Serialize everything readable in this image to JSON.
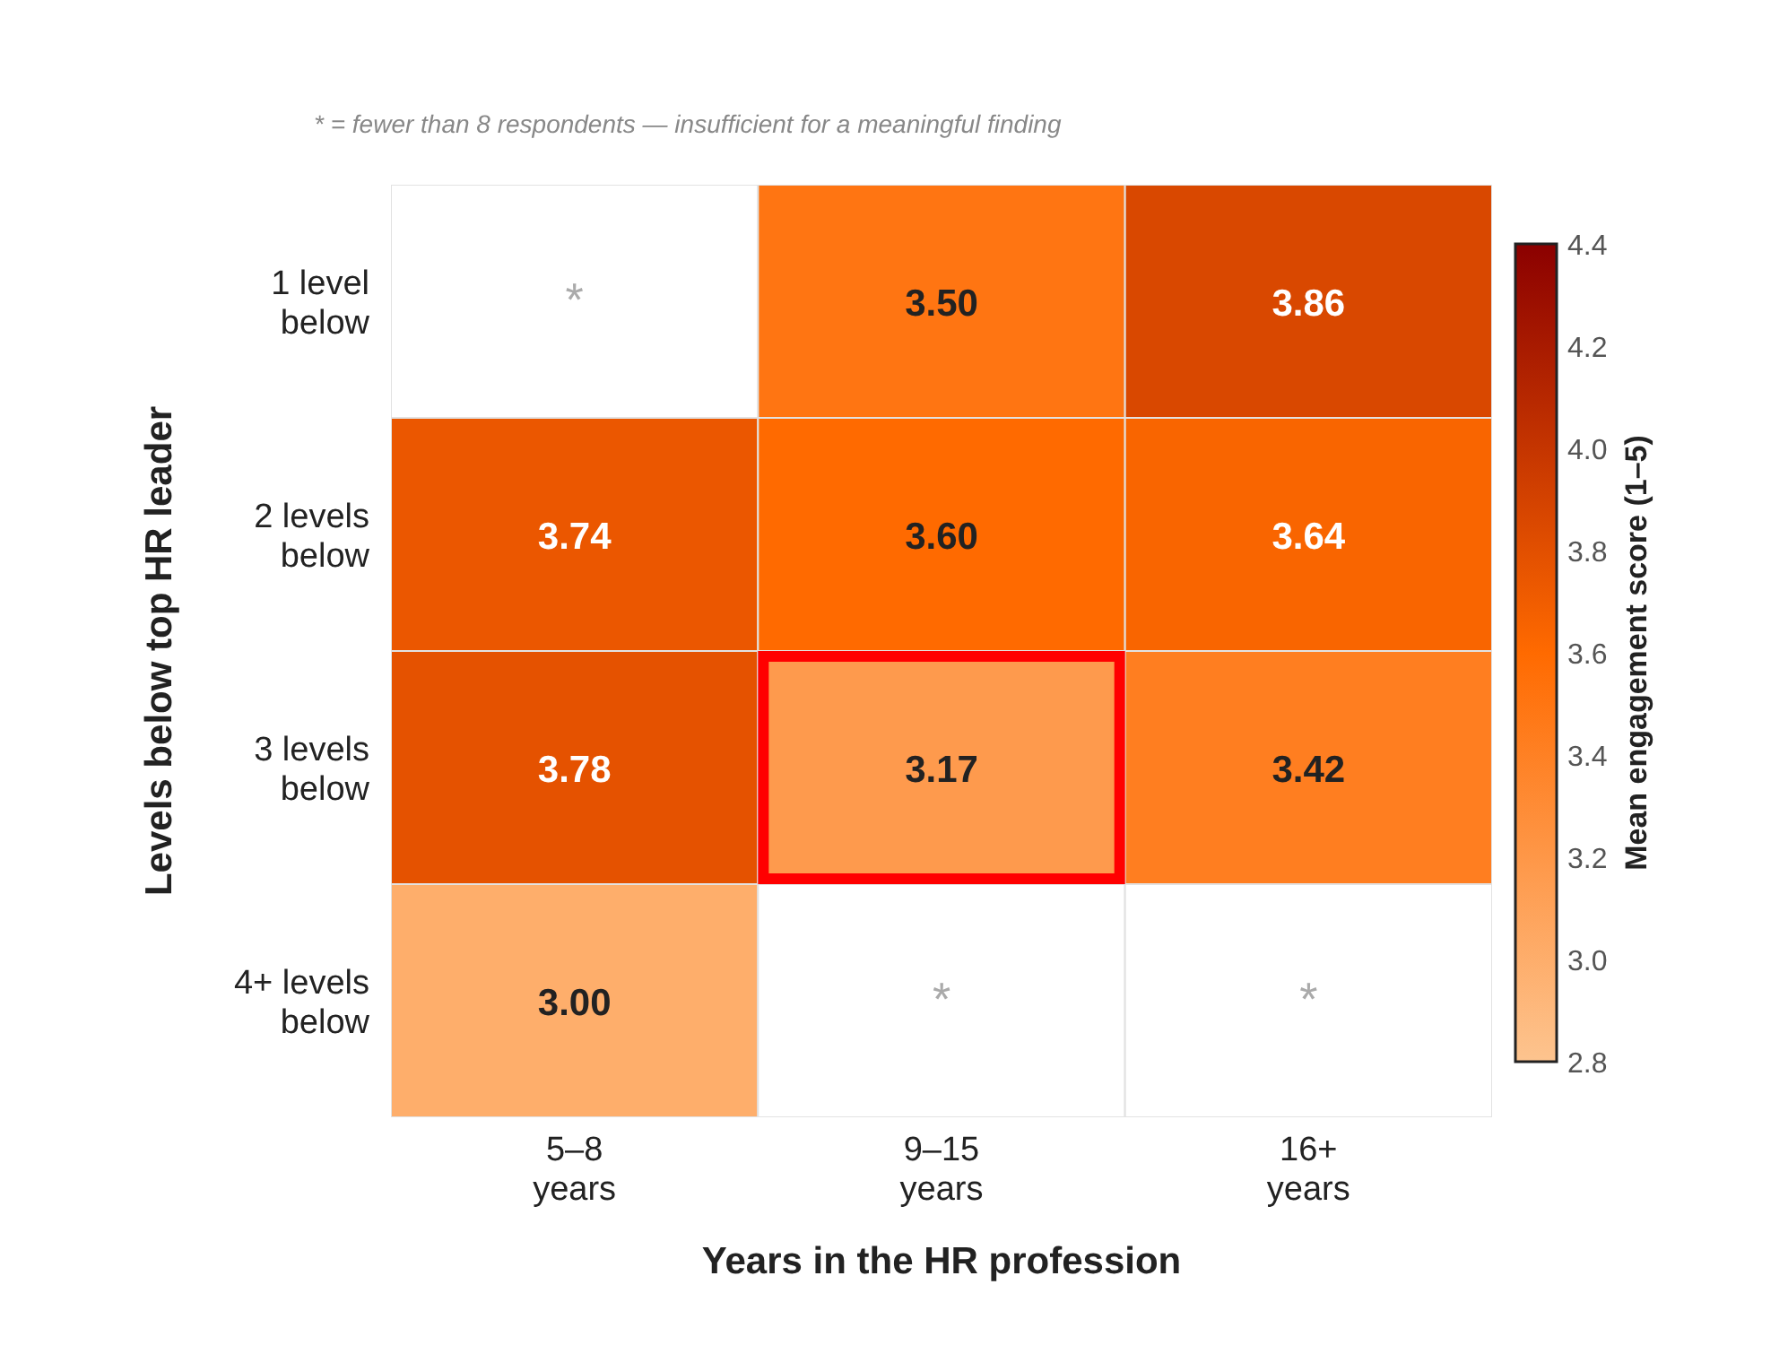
{
  "chart_data": {
    "type": "heatmap",
    "xlabel": "Years in the HR profession",
    "ylabel": "Levels below top HR leader",
    "clabel": "Mean engagement score (1–5)",
    "annotations": [
      "* = fewer than 8 respondents — insufficient for a meaningful finding"
    ],
    "categories": [
      "5–8 years",
      "9–15 years",
      "16+ years"
    ],
    "y_categories": [
      "1 level below",
      "2 levels below",
      "3 levels below",
      "4+ levels below"
    ],
    "cells": [
      [
        null,
        3.5,
        3.86
      ],
      [
        3.74,
        3.6,
        3.64
      ],
      [
        3.78,
        3.17,
        3.42
      ],
      [
        3.0,
        null,
        null
      ]
    ],
    "cell_labels": [
      [
        "*",
        "3.50",
        "3.86"
      ],
      [
        "3.74",
        "3.60",
        "3.64"
      ],
      [
        "3.78",
        "3.17",
        "3.42"
      ],
      [
        "3.00",
        "*",
        "*"
      ]
    ],
    "clim": [
      2.8,
      4.4
    ],
    "cticks": [
      2.8,
      {
        "value": 3,
        "label": "3.0"
      },
      3.2,
      3.4,
      3.6,
      3.8,
      {
        "value": 4,
        "label": "4.0"
      },
      4.2,
      4.4
    ]
  }
}
